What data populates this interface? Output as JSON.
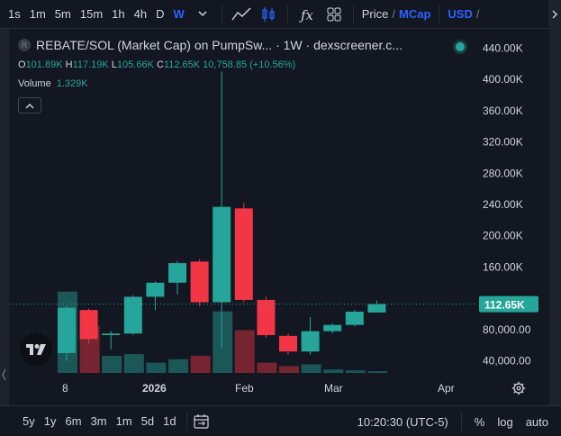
{
  "toolbar": {
    "timeframes": [
      "1s",
      "1m",
      "5m",
      "15m",
      "1h",
      "4h",
      "D",
      "W"
    ],
    "active_timeframe": "W",
    "price_label": "Price",
    "slash": "/",
    "mcap_label": "MCap",
    "currency_label": "USD",
    "currency_slash": "/"
  },
  "legend": {
    "symbol_initial": "R",
    "title": "REBATE/SOL (Market Cap) on PumpSw... · 1W · dexscreener.c...",
    "ohlc": {
      "o_label": "O",
      "o": "101.89K",
      "h_label": "H",
      "h": "117.19K",
      "l_label": "L",
      "l": "105.66K",
      "c_label": "C",
      "c": "112.65K",
      "change": "10,758.85 (+10.56%)"
    },
    "volume_label": "Volume",
    "volume_value": "1.329K"
  },
  "price_axis": {
    "ticks": [
      "440.00K",
      "400.00K",
      "360.00K",
      "320.00K",
      "280.00K",
      "240.00K",
      "200.00K",
      "160.00K",
      "80,000.00",
      "40,000.00"
    ],
    "last_price": "112.65K",
    "last_color": "#26a69a"
  },
  "time_axis": {
    "labels": [
      "8",
      "2026",
      "Feb",
      "Mar",
      "Apr"
    ]
  },
  "bottom_bar": {
    "ranges": [
      "5y",
      "1y",
      "6m",
      "3m",
      "1m",
      "5d",
      "1d"
    ],
    "clock": "10:20:30 (UTC-5)",
    "percent": "%",
    "log": "log",
    "auto": "auto"
  },
  "colors": {
    "up": "#26a69a",
    "down": "#f23645",
    "background": "#131722",
    "accent": "#2962ff"
  },
  "chart_data": {
    "type": "candlestick",
    "interval": "1W",
    "ylim": [
      20000,
      460000
    ],
    "candles": [
      {
        "o": 50000,
        "h": 110000,
        "l": 40000,
        "c": 108000,
        "dir": "up",
        "vol": 0.95
      },
      {
        "o": 105000,
        "h": 107000,
        "l": 62000,
        "c": 68000,
        "dir": "down",
        "vol": 0.55
      },
      {
        "o": 73000,
        "h": 78000,
        "l": 55000,
        "c": 75000,
        "dir": "up",
        "vol": 0.2
      },
      {
        "o": 75000,
        "h": 124000,
        "l": 73000,
        "c": 122000,
        "dir": "up",
        "vol": 0.22
      },
      {
        "o": 122000,
        "h": 142000,
        "l": 105000,
        "c": 140000,
        "dir": "up",
        "vol": 0.12
      },
      {
        "o": 140000,
        "h": 168000,
        "l": 125000,
        "c": 165000,
        "dir": "up",
        "vol": 0.16
      },
      {
        "o": 167000,
        "h": 170000,
        "l": 110000,
        "c": 115000,
        "dir": "down",
        "vol": 0.2
      },
      {
        "o": 115000,
        "h": 410000,
        "l": 56000,
        "c": 237000,
        "dir": "up",
        "vol": 0.72
      },
      {
        "o": 235000,
        "h": 242000,
        "l": 115000,
        "c": 118000,
        "dir": "down",
        "vol": 0.5
      },
      {
        "o": 118000,
        "h": 122000,
        "l": 70000,
        "c": 73000,
        "dir": "down",
        "vol": 0.12
      },
      {
        "o": 72000,
        "h": 75000,
        "l": 48000,
        "c": 52000,
        "dir": "down",
        "vol": 0.08
      },
      {
        "o": 52000,
        "h": 96000,
        "l": 48000,
        "c": 78000,
        "dir": "up",
        "vol": 0.1
      },
      {
        "o": 78000,
        "h": 88000,
        "l": 75000,
        "c": 86000,
        "dir": "up",
        "vol": 0.04
      },
      {
        "o": 86000,
        "h": 105000,
        "l": 84000,
        "c": 103000,
        "dir": "up",
        "vol": 0.03
      },
      {
        "o": 101890,
        "h": 117190,
        "l": 105660,
        "c": 112650,
        "dir": "up",
        "vol": 0.02
      }
    ]
  }
}
